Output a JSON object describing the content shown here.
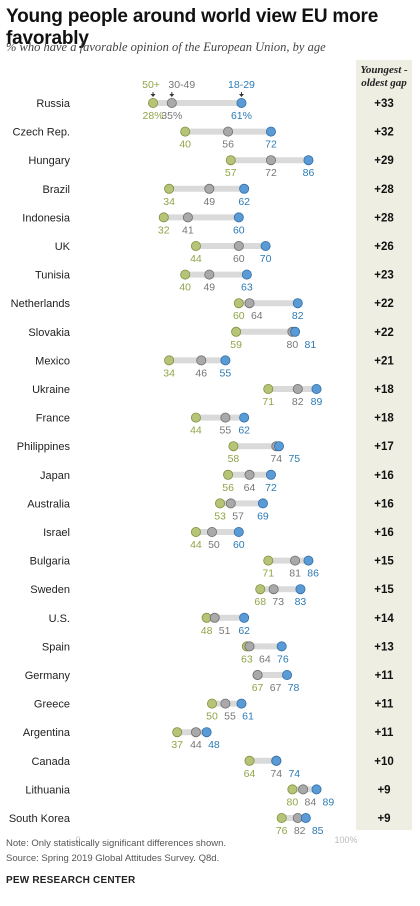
{
  "title": "Young people around world view EU more favorably",
  "subtitle": "% who have a favorable opinion of the European Union, by age",
  "gap_header": "Youngest - oldest gap",
  "note": "Note: Only statistically significant differences shown.",
  "source": "Source: Spring 2019 Global Attitudes Survey. Q8d.",
  "organization": "PEW RESEARCH CENTER",
  "colors": {
    "age_50_plus": "#b5c477",
    "age_30_49": "#a9a9a9",
    "age_18_29": "#5b9bd5",
    "label_18_29": "#2c7bb6",
    "label_50_plus": "#8fa548",
    "label_30_49": "#777777",
    "track": "#dadada"
  },
  "chart_data": {
    "type": "dot-range",
    "axis": {
      "min": 0,
      "max": 100,
      "min_label": "0",
      "max_label": "100%"
    },
    "legend": [
      "50+",
      "30-49",
      "18-29"
    ],
    "series": [
      "50+",
      "30-49",
      "18-29"
    ],
    "rows": [
      {
        "country": "Russia",
        "old": 28,
        "mid": 35,
        "young": 61,
        "gap": "+33",
        "old_label": "28%",
        "mid_label": "35%",
        "young_label": "61%"
      },
      {
        "country": "Czech Rep.",
        "old": 40,
        "mid": 56,
        "young": 72,
        "gap": "+32",
        "old_label": "40",
        "mid_label": "56",
        "young_label": "72"
      },
      {
        "country": "Hungary",
        "old": 57,
        "mid": 72,
        "young": 86,
        "gap": "+29",
        "old_label": "57",
        "mid_label": "72",
        "young_label": "86"
      },
      {
        "country": "Brazil",
        "old": 34,
        "mid": 49,
        "young": 62,
        "gap": "+28",
        "old_label": "34",
        "mid_label": "49",
        "young_label": "62"
      },
      {
        "country": "Indonesia",
        "old": 32,
        "mid": 41,
        "young": 60,
        "gap": "+28",
        "old_label": "32",
        "mid_label": "41",
        "young_label": "60"
      },
      {
        "country": "UK",
        "old": 44,
        "mid": 60,
        "young": 70,
        "gap": "+26",
        "old_label": "44",
        "mid_label": "60",
        "young_label": "70"
      },
      {
        "country": "Tunisia",
        "old": 40,
        "mid": 49,
        "young": 63,
        "gap": "+23",
        "old_label": "40",
        "mid_label": "49",
        "young_label": "63"
      },
      {
        "country": "Netherlands",
        "old": 60,
        "mid": 64,
        "young": 82,
        "gap": "+22",
        "old_label": "60",
        "mid_label": "64",
        "young_label": "82"
      },
      {
        "country": "Slovakia",
        "old": 59,
        "mid": 80,
        "young": 81,
        "gap": "+22",
        "old_label": "59",
        "mid_label": "80",
        "young_label": "81"
      },
      {
        "country": "Mexico",
        "old": 34,
        "mid": 46,
        "young": 55,
        "gap": "+21",
        "old_label": "34",
        "mid_label": "46",
        "young_label": "55"
      },
      {
        "country": "Ukraine",
        "old": 71,
        "mid": 82,
        "young": 89,
        "gap": "+18",
        "old_label": "71",
        "mid_label": "82",
        "young_label": "89"
      },
      {
        "country": "France",
        "old": 44,
        "mid": 55,
        "young": 62,
        "gap": "+18",
        "old_label": "44",
        "mid_label": "55",
        "young_label": "62"
      },
      {
        "country": "Philippines",
        "old": 58,
        "mid": 74,
        "young": 75,
        "gap": "+17",
        "old_label": "58",
        "mid_label": "74",
        "young_label": "75"
      },
      {
        "country": "Japan",
        "old": 56,
        "mid": 64,
        "young": 72,
        "gap": "+16",
        "old_label": "56",
        "mid_label": "64",
        "young_label": "72"
      },
      {
        "country": "Australia",
        "old": 53,
        "mid": 57,
        "young": 69,
        "gap": "+16",
        "old_label": "53",
        "mid_label": "57",
        "young_label": "69"
      },
      {
        "country": "Israel",
        "old": 44,
        "mid": 50,
        "young": 60,
        "gap": "+16",
        "old_label": "44",
        "mid_label": "50",
        "young_label": "60"
      },
      {
        "country": "Bulgaria",
        "old": 71,
        "mid": 81,
        "young": 86,
        "gap": "+15",
        "old_label": "71",
        "mid_label": "81",
        "young_label": "86"
      },
      {
        "country": "Sweden",
        "old": 68,
        "mid": 73,
        "young": 83,
        "gap": "+15",
        "old_label": "68",
        "mid_label": "73",
        "young_label": "83"
      },
      {
        "country": "U.S.",
        "old": 48,
        "mid": 51,
        "young": 62,
        "gap": "+14",
        "old_label": "48",
        "mid_label": "51",
        "young_label": "62"
      },
      {
        "country": "Spain",
        "old": 63,
        "mid": 64,
        "young": 76,
        "gap": "+13",
        "old_label": "63",
        "mid_label": "64",
        "young_label": "76"
      },
      {
        "country": "Germany",
        "old": 67,
        "mid": 67,
        "young": 78,
        "gap": "+11",
        "old_label": "67",
        "mid_label": "67",
        "young_label": "78"
      },
      {
        "country": "Greece",
        "old": 50,
        "mid": 55,
        "young": 61,
        "gap": "+11",
        "old_label": "50",
        "mid_label": "55",
        "young_label": "61"
      },
      {
        "country": "Argentina",
        "old": 37,
        "mid": 44,
        "young": 48,
        "gap": "+11",
        "old_label": "37",
        "mid_label": "44",
        "young_label": "48"
      },
      {
        "country": "Canada",
        "old": 64,
        "mid": 74,
        "young": 74,
        "gap": "+10",
        "old_label": "64",
        "mid_label": "74",
        "young_label": "74"
      },
      {
        "country": "Lithuania",
        "old": 80,
        "mid": 84,
        "young": 89,
        "gap": "+9",
        "old_label": "80",
        "mid_label": "84",
        "young_label": "89"
      },
      {
        "country": "South Korea",
        "old": 76,
        "mid": 82,
        "young": 85,
        "gap": "+9",
        "old_label": "76",
        "mid_label": "82",
        "young_label": "85"
      }
    ]
  }
}
